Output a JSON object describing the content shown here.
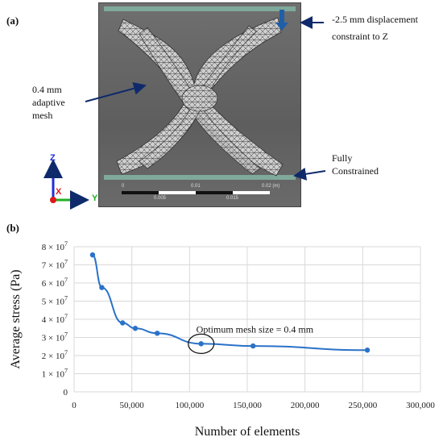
{
  "panel_a": {
    "label": "(a)",
    "annotations": {
      "displacement": [
        "-2.5 mm displacement",
        "constraint to Z"
      ],
      "mesh": [
        "0.4 mm",
        "adaptive",
        "mesh"
      ],
      "fixed": [
        "Fully",
        "Constrained"
      ]
    },
    "scale_bar": {
      "top_ticks": [
        "0",
        "0.01",
        "0.02 (m)"
      ],
      "bottom_ticks": [
        "0.005",
        "0.015"
      ]
    },
    "axes": {
      "z": "Z",
      "x": "X",
      "y": "Y"
    },
    "colors": {
      "z_axis": "#1f2fd6",
      "x_axis": "#e01818",
      "y_axis": "#20b020",
      "arrow": "#0f2a6b",
      "load_arrow": "#1f5fa8"
    }
  },
  "panel_b": {
    "label": "(b)"
  },
  "chart_data": {
    "type": "line",
    "title": "",
    "xlabel": "Number of elements",
    "ylabel": "Average stress (Pa)",
    "xlim": [
      0,
      300000
    ],
    "ylim": [
      0,
      80000000
    ],
    "x_ticks": [
      "0",
      "50,000",
      "100,000",
      "150,000",
      "200,000",
      "250,000",
      "300,000"
    ],
    "y_tick_mantissas": [
      "0",
      "1",
      "2",
      "3",
      "4",
      "5",
      "6",
      "7",
      "8"
    ],
    "y_tick_base": "× 10",
    "y_tick_exponent": "7",
    "grid": true,
    "series": [
      {
        "x": [
          16000,
          24000,
          42000,
          53000,
          72000,
          110000,
          155000,
          254000
        ],
        "y": [
          75500000,
          57500000,
          38000000,
          35000000,
          32300000,
          26500000,
          25300000,
          23000000
        ]
      }
    ],
    "annotation": "Optimum mesh size = 0.4 mm",
    "highlight_index": 5,
    "color": "#2a72c8"
  }
}
